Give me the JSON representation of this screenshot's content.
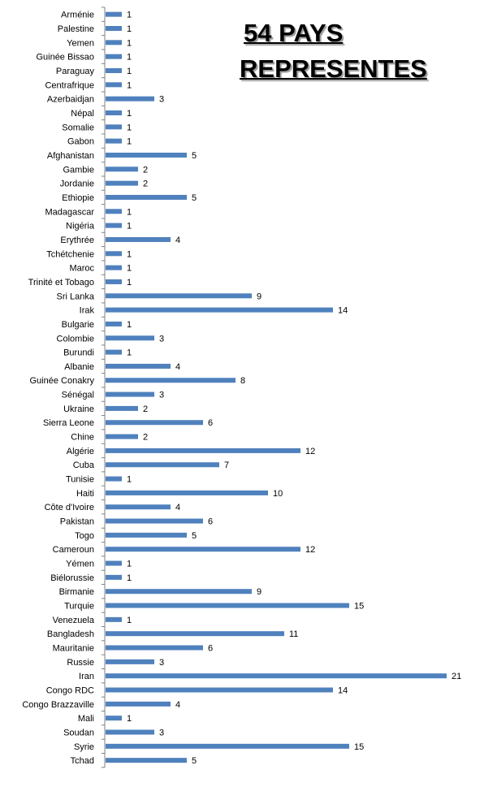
{
  "chart_data": {
    "type": "bar",
    "orientation": "horizontal",
    "title_line1": "54 PAYS",
    "title_line2": "REPRESENTES",
    "bar_color": "#4f81bd",
    "axis_color": "#808080",
    "categories": [
      "Arménie",
      "Palestine",
      "Yemen",
      "Guinée Bissao",
      "Paraguay",
      "Centrafrique",
      "Azerbaidjan",
      "Népal",
      "Somalie",
      "Gabon",
      "Afghanistan",
      "Gambie",
      "Jordanie",
      "Ethiopie",
      "Madagascar",
      "Nigéria",
      "Erythrée",
      "Tchétchenie",
      "Maroc",
      "Trinité et Tobago",
      "Sri Lanka",
      "Irak",
      "Bulgarie",
      "Colombie",
      "Burundi",
      "Albanie",
      "Guinée Conakry",
      "Sénégal",
      "Ukraine",
      "Sierra Leone",
      "Chine",
      "Algérie",
      "Cuba",
      "Tunisie",
      "Haiti",
      "Côte d'Ivoire",
      "Pakistan",
      "Togo",
      "Cameroun",
      "Yémen",
      "Biélorussie",
      "Birmanie",
      "Turquie",
      "Venezuela",
      "Bangladesh",
      "Mauritanie",
      "Russie",
      "Iran",
      "Congo RDC",
      "Congo Brazzaville",
      "Mali",
      "Soudan",
      "Syrie",
      "Tchad"
    ],
    "values": [
      1,
      1,
      1,
      1,
      1,
      1,
      3,
      1,
      1,
      1,
      5,
      2,
      2,
      5,
      1,
      1,
      4,
      1,
      1,
      1,
      9,
      14,
      1,
      3,
      1,
      4,
      8,
      3,
      2,
      6,
      2,
      12,
      7,
      1,
      10,
      4,
      6,
      5,
      12,
      1,
      1,
      9,
      15,
      1,
      11,
      6,
      3,
      21,
      14,
      4,
      1,
      3,
      15,
      5
    ],
    "xlim": [
      0,
      21
    ],
    "grid": false,
    "legend": "none"
  }
}
